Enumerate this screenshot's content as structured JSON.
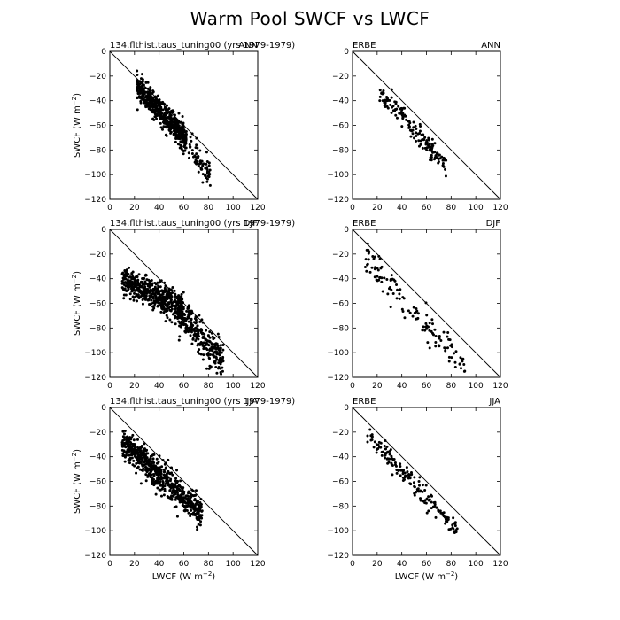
{
  "figure": {
    "title": "Warm Pool SWCF vs LWCF",
    "xlabel": "LWCF (W m",
    "xlabel_exp": "−2",
    "xlabel_close": ")",
    "ylabel": "SWCF (W m",
    "ylabel_exp": "−2",
    "ylabel_close": ")"
  },
  "chart_data": [
    {
      "type": "scatter",
      "source": "134.flthist.taus_tuning00 (yrs 1979-1979)",
      "season": "ANN",
      "xlim": [
        0,
        120
      ],
      "ylim": [
        -120,
        0
      ],
      "clusters": [
        {
          "n": 560,
          "x": [
            22,
            62
          ],
          "slope": -1.02,
          "intercept": -7,
          "spread": 5
        },
        {
          "n": 90,
          "x": [
            58,
            82
          ],
          "slope": -1.3,
          "intercept": 6,
          "spread": 6
        }
      ],
      "reference_line": "1:1"
    },
    {
      "type": "scatter",
      "source": "ERBE",
      "season": "ANN",
      "xlim": [
        0,
        120
      ],
      "ylim": [
        -120,
        0
      ],
      "clusters": [
        {
          "n": 170,
          "x": [
            22,
            76
          ],
          "slope": -1.12,
          "intercept": -8,
          "spread": 4
        }
      ],
      "reference_line": "1:1"
    },
    {
      "type": "scatter",
      "source": "134.flthist.taus_tuning00 (yrs 1979-1979)",
      "season": "DJF",
      "xlim": [
        0,
        120
      ],
      "ylim": [
        -120,
        0
      ],
      "clusters": [
        {
          "n": 520,
          "x": [
            10,
            60
          ],
          "slope": -0.45,
          "intercept": -37,
          "spread": 6
        },
        {
          "n": 300,
          "x": [
            55,
            92
          ],
          "slope": -1.15,
          "intercept": -2,
          "spread": 7
        }
      ],
      "reference_line": "1:1"
    },
    {
      "type": "scatter",
      "source": "ERBE",
      "season": "DJF",
      "xlim": [
        0,
        120
      ],
      "ylim": [
        -120,
        0
      ],
      "clusters": [
        {
          "n": 130,
          "x": [
            10,
            92
          ],
          "slope": -1.15,
          "intercept": -10,
          "spread": 7
        }
      ],
      "reference_line": "1:1"
    },
    {
      "type": "scatter",
      "source": "134.flthist.taus_tuning00 (yrs 1979-1979)",
      "season": "JJA",
      "xlim": [
        0,
        120
      ],
      "ylim": [
        -120,
        0
      ],
      "clusters": [
        {
          "n": 700,
          "x": [
            10,
            75
          ],
          "slope": -0.92,
          "intercept": -18,
          "spread": 6
        }
      ],
      "reference_line": "1:1"
    },
    {
      "type": "scatter",
      "source": "ERBE",
      "season": "JJA",
      "xlim": [
        0,
        120
      ],
      "ylim": [
        -120,
        0
      ],
      "clusters": [
        {
          "n": 170,
          "x": [
            12,
            85
          ],
          "slope": -1.05,
          "intercept": -10,
          "spread": 4
        }
      ],
      "reference_line": "1:1"
    }
  ],
  "axis": {
    "xticks": [
      "0",
      "20",
      "40",
      "60",
      "80",
      "100",
      "120"
    ],
    "yticks": [
      "0",
      "−20",
      "−40",
      "−60",
      "−80",
      "−100",
      "−120"
    ]
  }
}
